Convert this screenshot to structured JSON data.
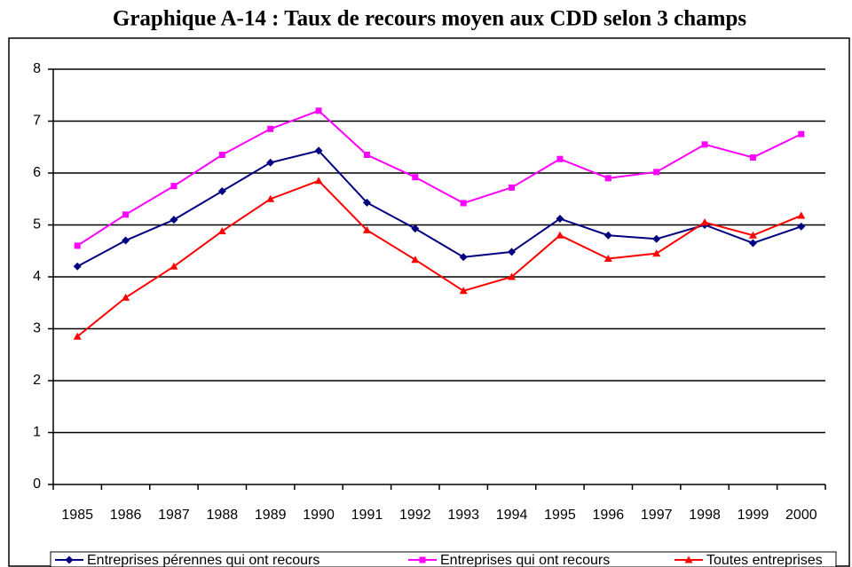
{
  "chart_data": {
    "type": "line",
    "title": "Graphique A-14 : Taux de recours moyen aux CDD selon 3 champs",
    "categories": [
      "1985",
      "1986",
      "1987",
      "1988",
      "1989",
      "1990",
      "1991",
      "1992",
      "1993",
      "1994",
      "1995",
      "1996",
      "1997",
      "1998",
      "1999",
      "2000"
    ],
    "series": [
      {
        "name": "Entreprises pérennes qui ont recours",
        "color": "#000080",
        "marker": "diamond",
        "values": [
          4.2,
          4.7,
          5.1,
          5.65,
          6.2,
          6.43,
          5.43,
          4.93,
          4.38,
          4.48,
          5.12,
          4.8,
          4.73,
          5.0,
          4.65,
          4.97
        ]
      },
      {
        "name": "Entreprises qui ont recours",
        "color": "#ff00ff",
        "marker": "square",
        "values": [
          4.6,
          5.2,
          5.75,
          6.35,
          6.85,
          7.2,
          6.35,
          5.92,
          5.42,
          5.72,
          6.27,
          5.9,
          6.02,
          6.55,
          6.3,
          6.75
        ]
      },
      {
        "name": "Toutes entreprises",
        "color": "#ff0000",
        "marker": "triangle",
        "values": [
          2.85,
          3.6,
          4.2,
          4.88,
          5.5,
          5.85,
          4.9,
          4.33,
          3.73,
          4.0,
          4.8,
          4.35,
          4.45,
          5.05,
          4.8,
          5.18
        ]
      }
    ],
    "ylim": [
      0,
      8
    ],
    "yticks": [
      0,
      1,
      2,
      3,
      4,
      5,
      6,
      7,
      8
    ],
    "grid": true,
    "legend": "bottom"
  }
}
